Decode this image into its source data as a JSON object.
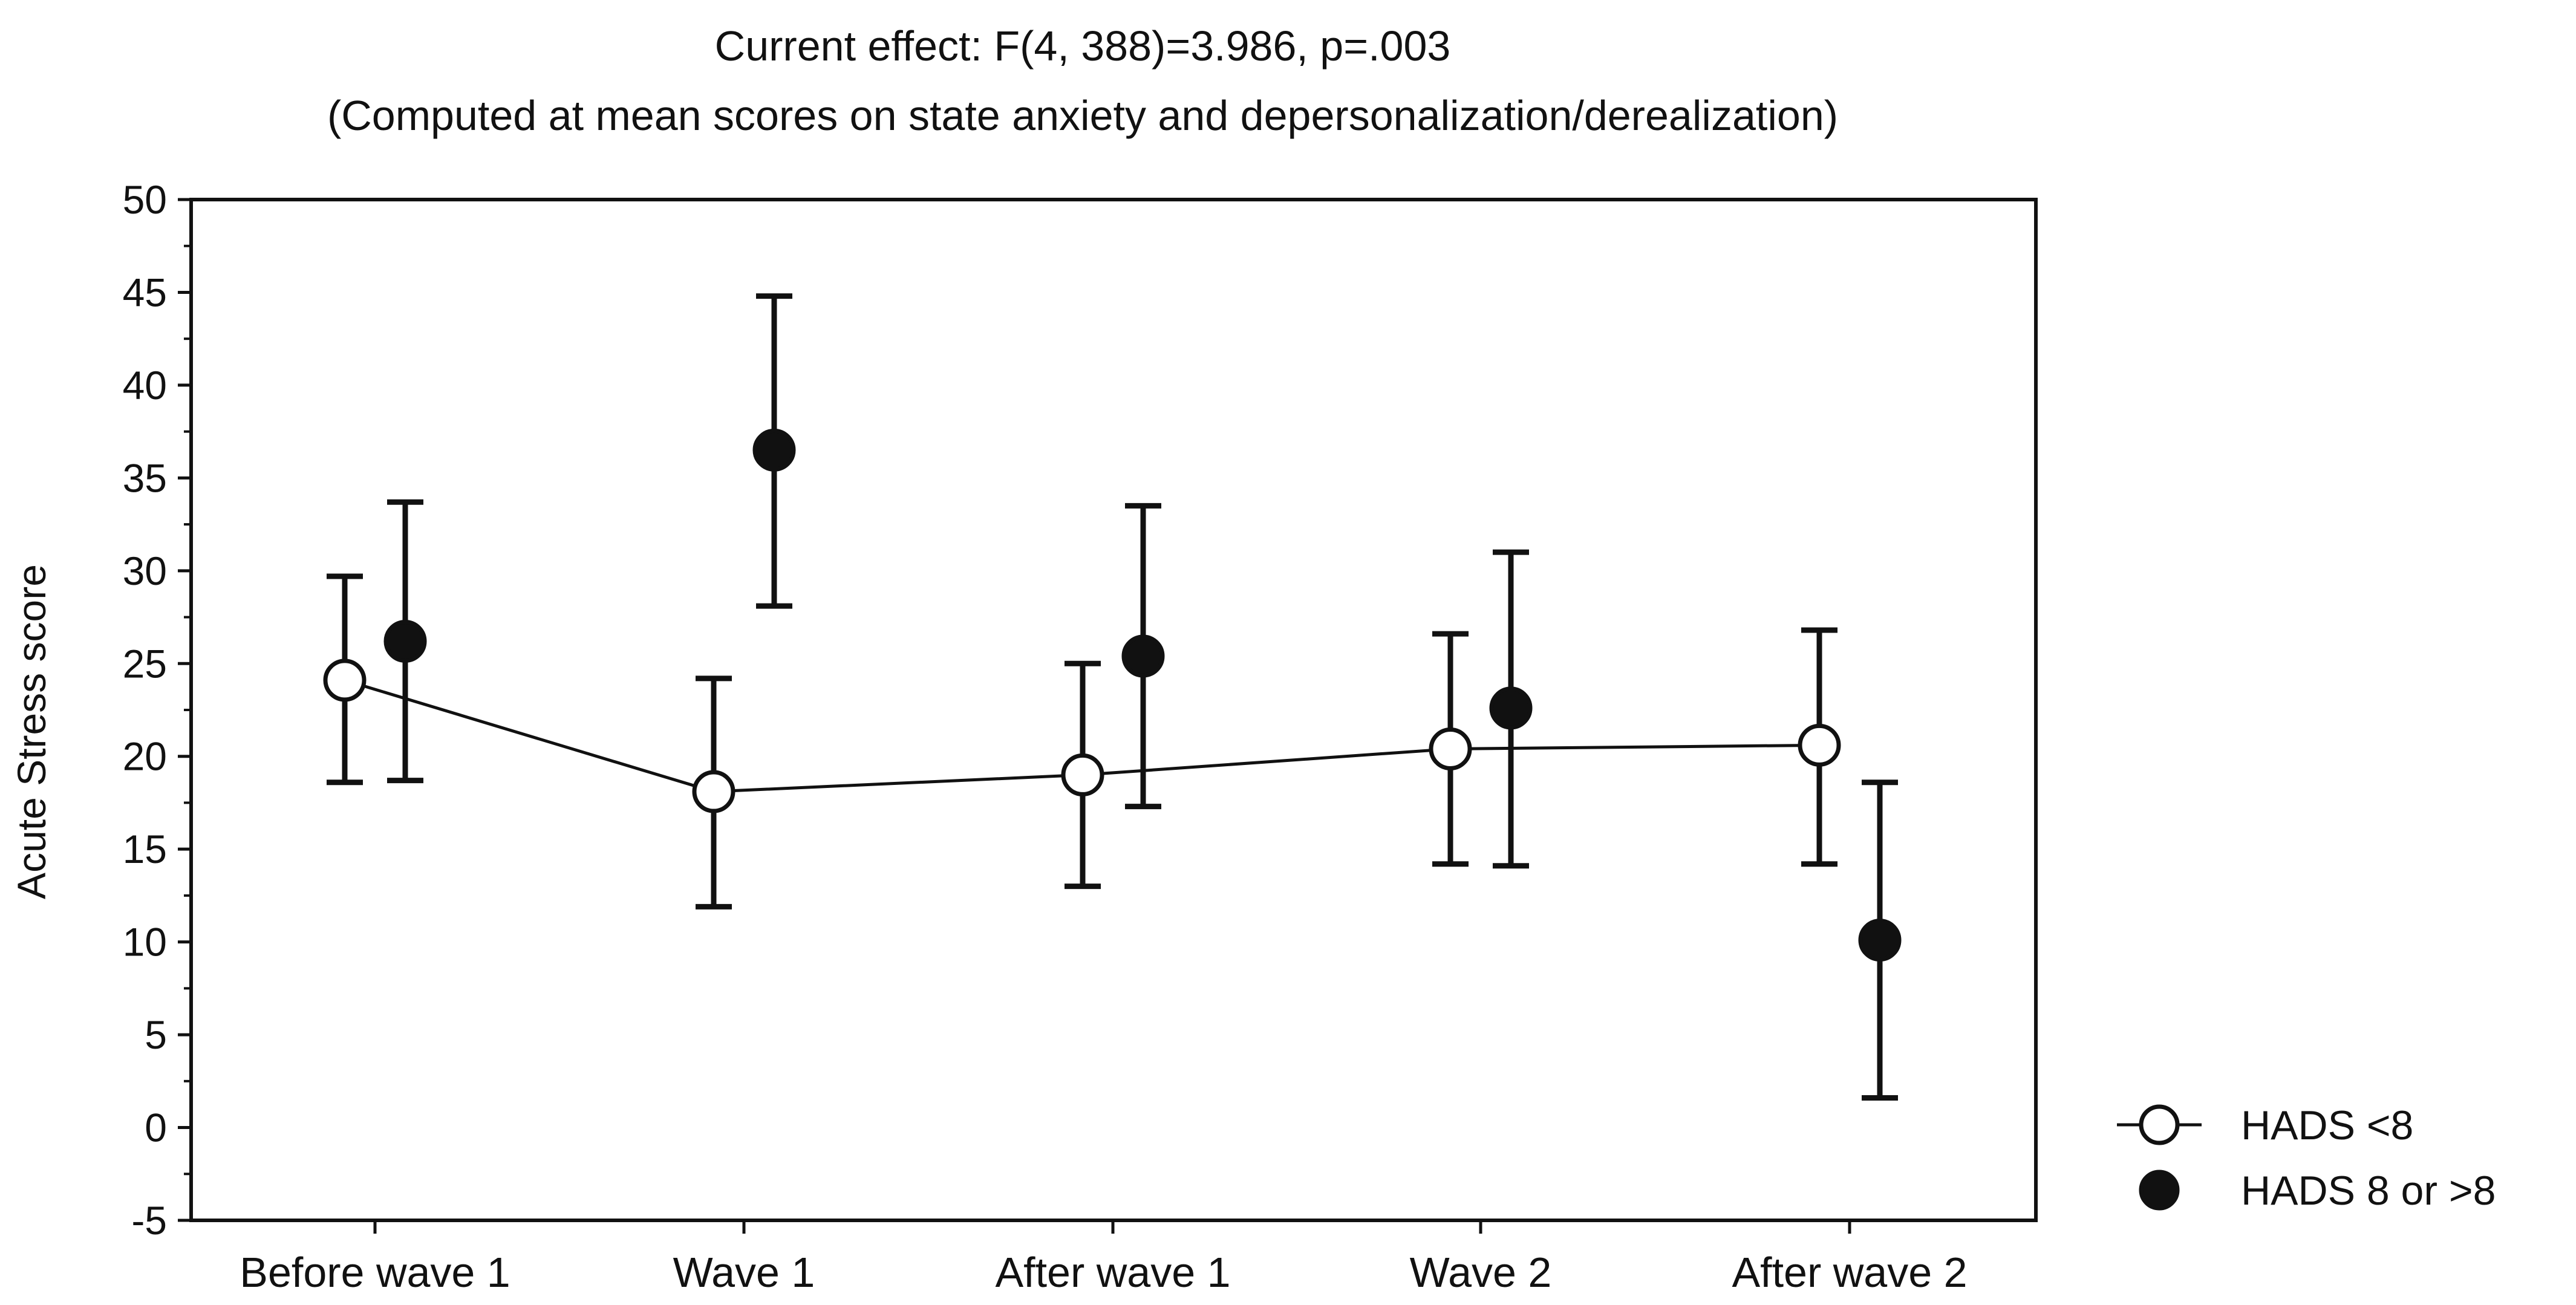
{
  "chart_data": {
    "type": "errorbar",
    "title": "Current effect: F(4, 388)=3.986, p=.003",
    "subtitle": "(Computed at mean scores on state anxiety and depersonalization/derealization)",
    "xlabel": "",
    "ylabel": "Acute Stress score",
    "ylim": [
      -5,
      50
    ],
    "yticks": [
      -5,
      0,
      5,
      10,
      15,
      20,
      25,
      30,
      35,
      40,
      45,
      50
    ],
    "grid": false,
    "legend_position": "bottom-right, outside plot",
    "categories": [
      "Before wave 1",
      "Wave 1",
      "After wave 1",
      "Wave 2",
      "After wave 2"
    ],
    "series": [
      {
        "name": "HADS <8",
        "marker": "open-circle",
        "connected": true,
        "values": [
          24.1,
          18.1,
          19.0,
          20.4,
          20.6
        ],
        "lower": [
          18.6,
          11.9,
          13.0,
          14.2,
          14.2
        ],
        "upper": [
          29.7,
          24.2,
          25.0,
          26.6,
          26.8
        ]
      },
      {
        "name": "HADS 8 or >8",
        "marker": "filled-circle",
        "connected": false,
        "values": [
          26.2,
          36.5,
          25.4,
          22.6,
          10.1
        ],
        "lower": [
          18.7,
          28.1,
          17.3,
          14.1,
          1.6
        ],
        "upper": [
          33.7,
          44.8,
          33.5,
          31.0,
          18.6
        ]
      }
    ],
    "colors": {
      "line": "#111111",
      "marker_fill_open": "#ffffff",
      "marker_fill_filled": "#111111",
      "background": "#ffffff"
    }
  }
}
